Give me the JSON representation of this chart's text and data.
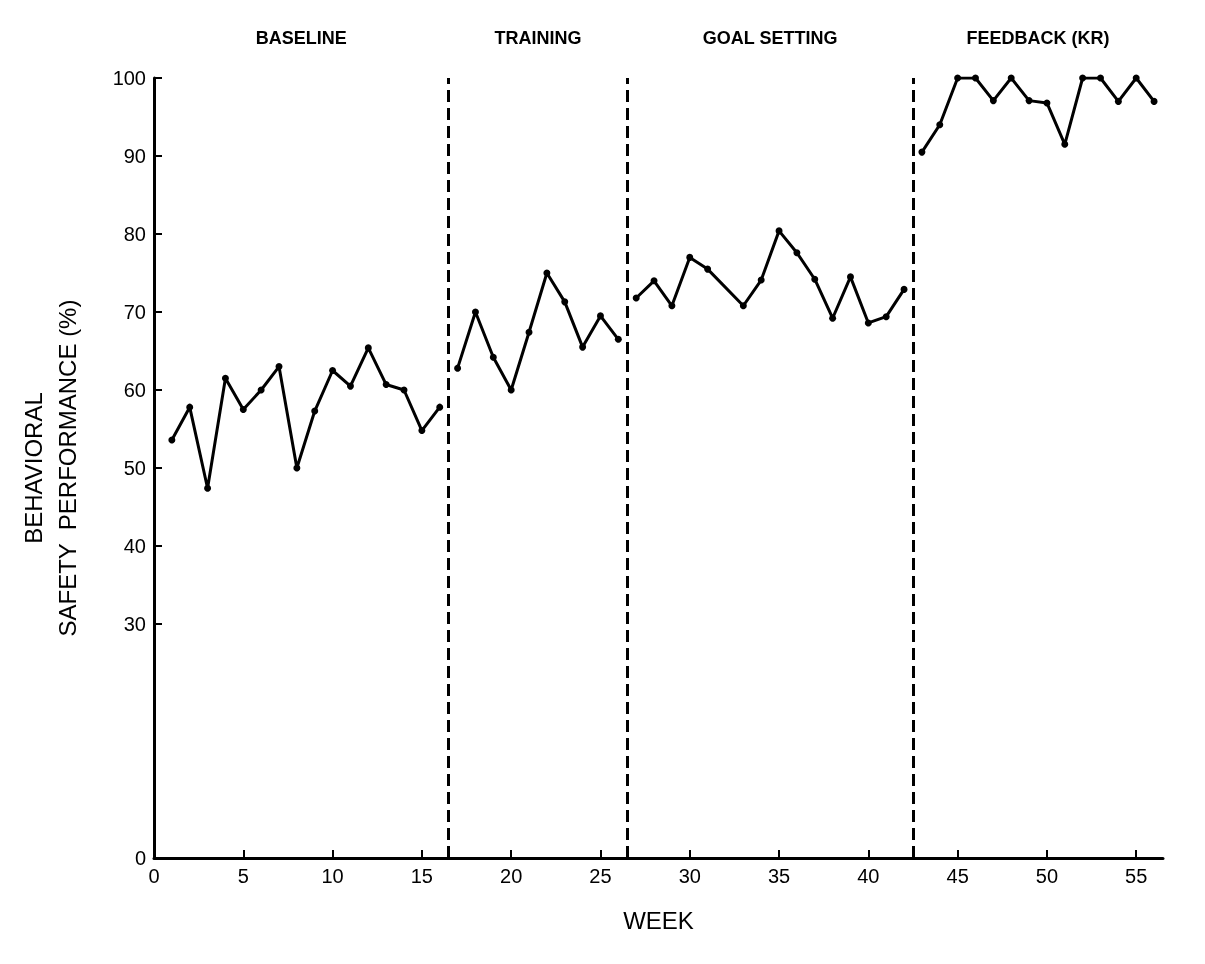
{
  "chart_data": {
    "type": "line",
    "xlabel": "WEEK",
    "ylabel": "BEHAVIORAL\nSAFETY  PERFORMANCE (%)",
    "series": [
      {
        "color": "#000000",
        "x": [
          1,
          2,
          3,
          4,
          5,
          6,
          7,
          8,
          9,
          10,
          11,
          12,
          13,
          14,
          15,
          16
        ],
        "values": [
          53.6,
          57.8,
          47.4,
          61.5,
          57.5,
          60,
          63,
          50,
          57.3,
          62.5,
          60.5,
          65.4,
          60.7,
          60,
          54.8,
          57.8
        ]
      },
      {
        "color": "#000000",
        "x": [
          17,
          18,
          19,
          20,
          21,
          22,
          23,
          24,
          25,
          26
        ],
        "values": [
          62.8,
          70,
          64.2,
          60,
          67.4,
          75,
          71.3,
          65.5,
          69.5,
          66.5
        ]
      },
      {
        "color": "#000000",
        "x": [
          27,
          28,
          29,
          30,
          31,
          33,
          34,
          35,
          36,
          37,
          38,
          39,
          40,
          41,
          42
        ],
        "values": [
          71.8,
          74,
          70.8,
          77,
          75.5,
          70.8,
          74.1,
          80.4,
          77.6,
          74.2,
          69.2,
          74.5,
          68.6,
          69.4,
          72.9
        ]
      },
      {
        "color": "#000000",
        "x": [
          43,
          44,
          45,
          46,
          47,
          48,
          49,
          50,
          51,
          52,
          53,
          54,
          55,
          56
        ],
        "values": [
          90.5,
          94,
          100,
          100,
          97.1,
          100,
          97.1,
          96.8,
          91.5,
          100,
          100,
          97,
          100,
          97
        ]
      }
    ],
    "xlim": [
      0,
      56.5
    ],
    "xticks": [
      0,
      5,
      10,
      15,
      20,
      25,
      30,
      35,
      40,
      45,
      50,
      55
    ],
    "ylim": [
      0,
      100
    ],
    "yticks": [
      0,
      30,
      40,
      50,
      60,
      70,
      80,
      90,
      100
    ],
    "ref_lines": [
      {
        "axis": "x",
        "value": 16.5,
        "color": "#000000",
        "line_style": "dashed"
      },
      {
        "axis": "x",
        "value": 26.5,
        "color": "#000000",
        "line_style": "dashed"
      },
      {
        "axis": "x",
        "value": 42.5,
        "color": "#000000",
        "line_style": "dashed"
      }
    ],
    "annotations": [
      "BASELINE",
      "TRAINING",
      "GOAL SETTING",
      "FEEDBACK (KR)"
    ],
    "marker": "circle",
    "line_style": "solid",
    "grid": false
  }
}
